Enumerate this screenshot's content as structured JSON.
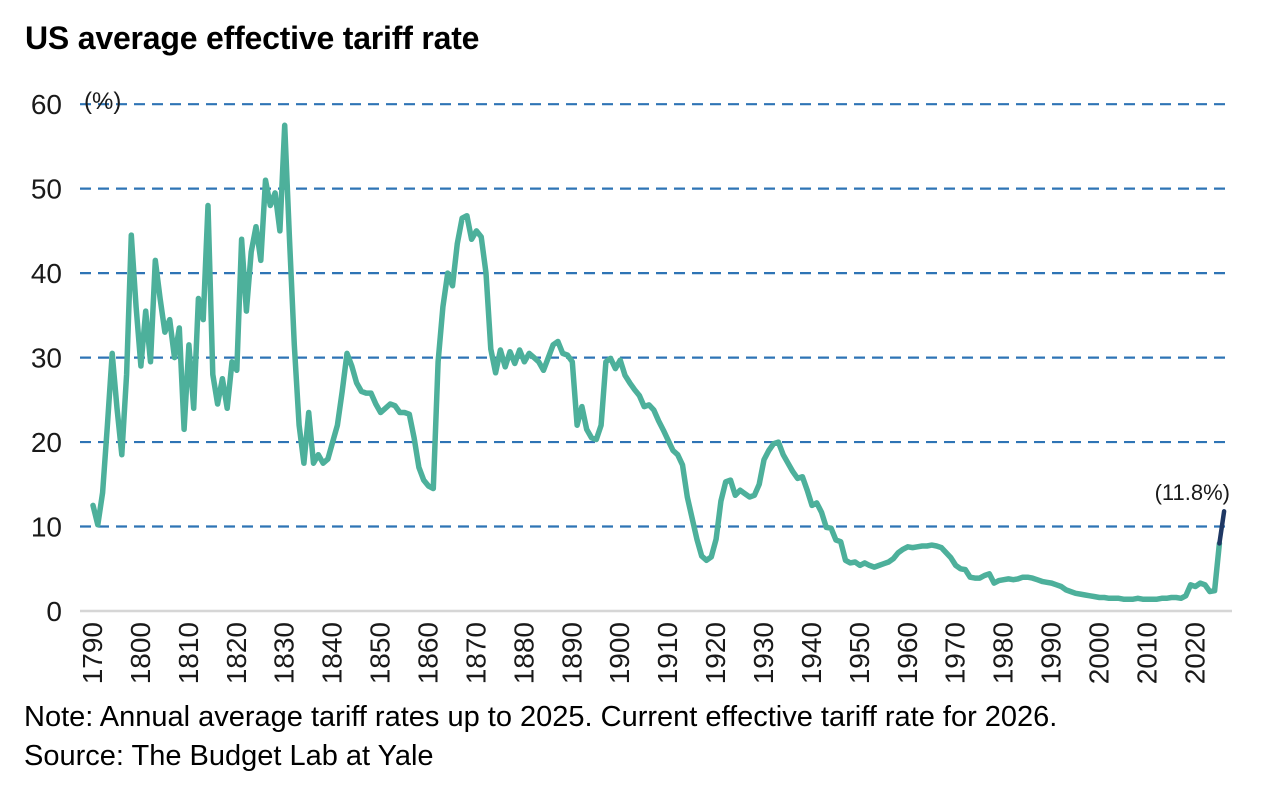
{
  "title": "US average effective tariff rate",
  "y_axis_unit_label": "(%)",
  "annotation": "(11.8%)",
  "note": "Note: Annual average tariff rates up to 2025. Current effective tariff rate for 2026.",
  "source": "Source: The Budget Lab at Yale",
  "colors": {
    "line": "#4DB09B",
    "final_segment": "#1F3864",
    "gridline": "#2E74B5",
    "zero_axis": "#D6D6D6",
    "tick_text": "#1a1a1a"
  },
  "chart_data": {
    "type": "line",
    "title": "US average effective tariff rate",
    "xlabel": "",
    "ylabel": "(%)",
    "xlim": [
      1790,
      2026
    ],
    "ylim": [
      0,
      60
    ],
    "yticks": [
      0,
      10,
      20,
      30,
      40,
      50,
      60
    ],
    "xticks": [
      1790,
      1800,
      1810,
      1820,
      1830,
      1840,
      1850,
      1860,
      1870,
      1880,
      1890,
      1900,
      1910,
      1920,
      1930,
      1940,
      1950,
      1960,
      1970,
      1980,
      1990,
      2000,
      2010,
      2020
    ],
    "grid": "horizontal dashed gridlines at 10-60, solid light gray baseline at 0",
    "legend": "none",
    "annotation": {
      "text": "(11.8%)",
      "x": 2026,
      "y": 11.8
    },
    "series": [
      {
        "name": "annual_average_tariff_rate_1790_2025",
        "color": "#4DB09B",
        "x_start": 1790,
        "x_step": 1,
        "values": [
          12.5,
          10.2,
          14,
          22,
          30.5,
          24,
          18.5,
          28,
          44.5,
          36,
          29,
          35.5,
          29.5,
          41.5,
          37,
          33,
          34.5,
          30,
          33.5,
          21.5,
          31.5,
          24,
          37,
          34.5,
          48,
          28,
          24.5,
          27.5,
          24,
          29.5,
          28.5,
          44,
          35.5,
          42.5,
          45.5,
          41.5,
          51,
          48,
          49.5,
          45,
          57.5,
          44,
          31.5,
          22,
          17.5,
          23.5,
          17.5,
          18.5,
          17.5,
          18,
          20,
          22,
          26,
          30.5,
          29,
          27,
          26,
          25.8,
          25.8,
          24.5,
          23.5,
          24,
          24.5,
          24.3,
          23.5,
          23.5,
          23.3,
          20.5,
          17,
          15.5,
          14.8,
          14.5,
          29.5,
          36,
          40,
          38.5,
          43.5,
          46.5,
          46.8,
          44,
          45,
          44.3,
          40,
          31,
          28.2,
          30.9,
          28.9,
          30.7,
          29.3,
          30.9,
          29.5,
          30.5,
          30,
          29.5,
          28.5,
          30,
          31.5,
          31.9,
          30.5,
          30.3,
          29.5,
          22,
          24.2,
          21.5,
          20.5,
          20.3,
          22,
          29.5,
          29.9,
          28.7,
          29.7,
          27.9,
          27,
          26.2,
          25.5,
          24.2,
          24.4,
          23.8,
          22.5,
          21.4,
          20.2,
          19,
          18.5,
          17.3,
          13.5,
          11,
          8.5,
          6.5,
          6,
          6.4,
          8.5,
          13,
          15.3,
          15.5,
          13.7,
          14.3,
          13.9,
          13.5,
          13.7,
          15,
          17.9,
          19,
          19.8,
          20,
          18.5,
          17.5,
          16.5,
          15.7,
          15.9,
          14.3,
          12.5,
          12.8,
          11.7,
          9.9,
          9.8,
          8.4,
          8.2,
          6,
          5.7,
          5.8,
          5.4,
          5.7,
          5.4,
          5.2,
          5.4,
          5.6,
          5.8,
          6.2,
          6.9,
          7.3,
          7.6,
          7.5,
          7.6,
          7.7,
          7.7,
          7.8,
          7.7,
          7.5,
          6.9,
          6.3,
          5.4,
          5,
          4.9,
          4,
          3.9,
          3.9,
          4.2,
          4.4,
          3.3,
          3.6,
          3.7,
          3.8,
          3.7,
          3.8,
          4,
          4,
          3.9,
          3.7,
          3.5,
          3.4,
          3.3,
          3.1,
          2.9,
          2.5,
          2.3,
          2.1,
          2,
          1.9,
          1.8,
          1.7,
          1.6,
          1.6,
          1.5,
          1.5,
          1.5,
          1.4,
          1.4,
          1.4,
          1.5,
          1.4,
          1.4,
          1.4,
          1.4,
          1.5,
          1.5,
          1.6,
          1.6,
          1.5,
          1.8,
          3.1,
          2.9,
          3.3,
          3.1,
          2.3,
          2.4,
          8
        ]
      },
      {
        "name": "current_effective_tariff_rate_2026",
        "color": "#1F3864",
        "x": [
          2025,
          2026
        ],
        "values": [
          8,
          11.8
        ]
      }
    ]
  }
}
